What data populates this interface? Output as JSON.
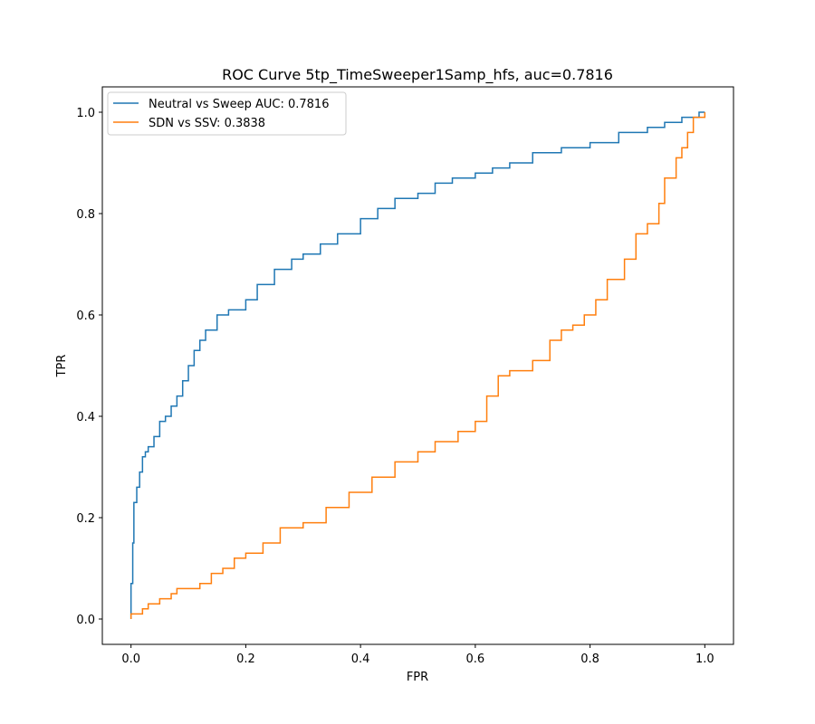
{
  "chart_data": {
    "type": "line",
    "title": "ROC Curve 5tp_TimeSweeper1Samp_hfs, auc=0.7816",
    "xlabel": "FPR",
    "ylabel": "TPR",
    "xlim": [
      -0.05,
      1.05
    ],
    "ylim": [
      -0.05,
      1.05
    ],
    "xticks": [
      0.0,
      0.2,
      0.4,
      0.6,
      0.8,
      1.0
    ],
    "yticks": [
      0.0,
      0.2,
      0.4,
      0.6,
      0.8,
      1.0
    ],
    "xtick_labels": [
      "0.0",
      "0.2",
      "0.4",
      "0.6",
      "0.8",
      "1.0"
    ],
    "ytick_labels": [
      "0.0",
      "0.2",
      "0.4",
      "0.6",
      "0.8",
      "1.0"
    ],
    "grid": false,
    "legend_position": "upper-left",
    "series": [
      {
        "name": "Neutral vs Sweep AUC: 0.7816",
        "color": "#1f77b4",
        "x": [
          0.0,
          0.0,
          0.003,
          0.005,
          0.01,
          0.015,
          0.02,
          0.025,
          0.03,
          0.04,
          0.05,
          0.06,
          0.07,
          0.08,
          0.09,
          0.1,
          0.11,
          0.12,
          0.13,
          0.15,
          0.17,
          0.2,
          0.22,
          0.25,
          0.28,
          0.3,
          0.33,
          0.36,
          0.4,
          0.43,
          0.46,
          0.5,
          0.53,
          0.56,
          0.6,
          0.63,
          0.66,
          0.7,
          0.75,
          0.8,
          0.85,
          0.9,
          0.93,
          0.96,
          0.98,
          0.99,
          1.0
        ],
        "y": [
          0.0,
          0.07,
          0.15,
          0.23,
          0.26,
          0.29,
          0.32,
          0.33,
          0.34,
          0.36,
          0.39,
          0.4,
          0.42,
          0.44,
          0.47,
          0.5,
          0.53,
          0.55,
          0.57,
          0.6,
          0.61,
          0.63,
          0.66,
          0.69,
          0.71,
          0.72,
          0.74,
          0.76,
          0.79,
          0.81,
          0.83,
          0.84,
          0.86,
          0.87,
          0.88,
          0.89,
          0.9,
          0.92,
          0.93,
          0.94,
          0.96,
          0.97,
          0.98,
          0.99,
          0.99,
          1.0,
          1.0
        ]
      },
      {
        "name": "SDN vs SSV: 0.3838",
        "color": "#ff7f0e",
        "x": [
          0.0,
          0.0,
          0.02,
          0.03,
          0.05,
          0.07,
          0.08,
          0.1,
          0.12,
          0.14,
          0.16,
          0.18,
          0.2,
          0.23,
          0.26,
          0.3,
          0.34,
          0.38,
          0.42,
          0.46,
          0.5,
          0.53,
          0.57,
          0.6,
          0.62,
          0.64,
          0.66,
          0.7,
          0.73,
          0.75,
          0.77,
          0.79,
          0.81,
          0.83,
          0.86,
          0.88,
          0.9,
          0.92,
          0.93,
          0.95,
          0.96,
          0.97,
          0.98,
          0.99,
          1.0
        ],
        "y": [
          0.0,
          0.01,
          0.02,
          0.03,
          0.04,
          0.05,
          0.06,
          0.06,
          0.07,
          0.09,
          0.1,
          0.12,
          0.13,
          0.15,
          0.18,
          0.19,
          0.22,
          0.25,
          0.28,
          0.31,
          0.33,
          0.35,
          0.37,
          0.39,
          0.44,
          0.48,
          0.49,
          0.51,
          0.55,
          0.57,
          0.58,
          0.6,
          0.63,
          0.67,
          0.71,
          0.76,
          0.78,
          0.82,
          0.87,
          0.91,
          0.93,
          0.96,
          0.99,
          0.99,
          1.0
        ]
      }
    ]
  }
}
